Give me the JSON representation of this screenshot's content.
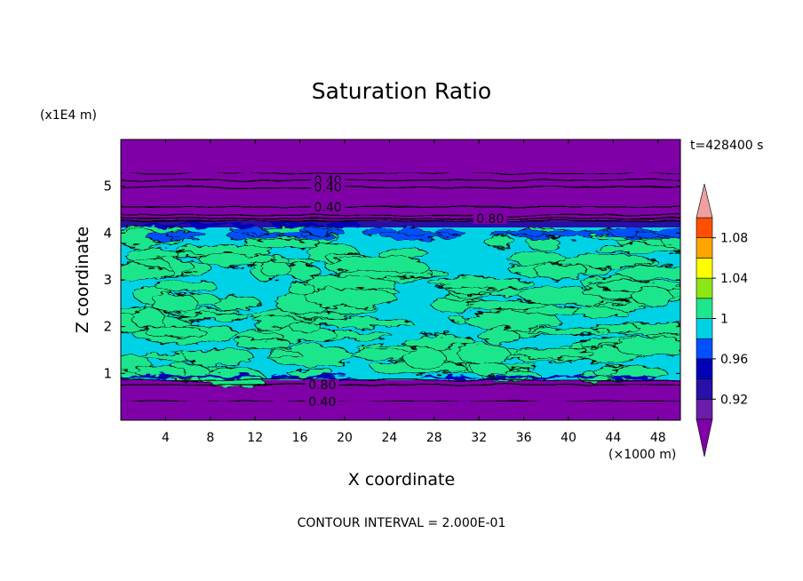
{
  "chart_data": {
    "type": "heatmap",
    "title": "Saturation Ratio",
    "xlabel": "X coordinate",
    "ylabel": "Z coordinate",
    "x_unit_label": "(×1000 m)",
    "y_unit_label": "(x1E4 m)",
    "time_label": "t=428400 s",
    "footer": "CONTOUR INTERVAL = 2.000E-01",
    "xlim": [
      0,
      50
    ],
    "ylim": [
      0,
      6
    ],
    "x_ticks": [
      4,
      8,
      12,
      16,
      20,
      24,
      28,
      32,
      36,
      40,
      44,
      48
    ],
    "y_ticks": [
      1,
      2,
      3,
      4,
      5
    ],
    "bands": [
      {
        "z0": 0.0,
        "z1": 0.86,
        "value": 0.4
      },
      {
        "z0": 0.86,
        "z1": 4.12,
        "value": 0.99
      },
      {
        "z0": 4.12,
        "z1": 4.26,
        "value": 0.93
      },
      {
        "z0": 4.26,
        "z1": 6.0,
        "value": 0.4
      }
    ],
    "contour_labels": [
      {
        "text": "0.40",
        "x": 18.5,
        "z": 5.13
      },
      {
        "text": "0.40",
        "x": 18.5,
        "z": 4.98
      },
      {
        "text": "0.40",
        "x": 18.5,
        "z": 4.56
      },
      {
        "text": "0.80",
        "x": 33.0,
        "z": 4.31
      },
      {
        "text": "0.80",
        "x": 18.0,
        "z": 0.76
      },
      {
        "text": "0.40",
        "x": 18.0,
        "z": 0.4
      }
    ],
    "colorbar": {
      "levels": [
        0.9,
        0.92,
        0.94,
        0.96,
        0.98,
        1.0,
        1.02,
        1.04,
        1.06,
        1.08,
        1.1
      ],
      "colors": [
        "#6a1ea8",
        "#280fa8",
        "#0000b8",
        "#0050ff",
        "#00d2e6",
        "#1ee68c",
        "#8ce614",
        "#ffff00",
        "#ffa500",
        "#ff5000",
        "#ff1e1e"
      ],
      "under_color": "#8000a8",
      "over_color": "#f0a0a0",
      "tick_labels": [
        "0.92",
        "0.96",
        "1",
        "1.04",
        "1.08"
      ]
    }
  }
}
